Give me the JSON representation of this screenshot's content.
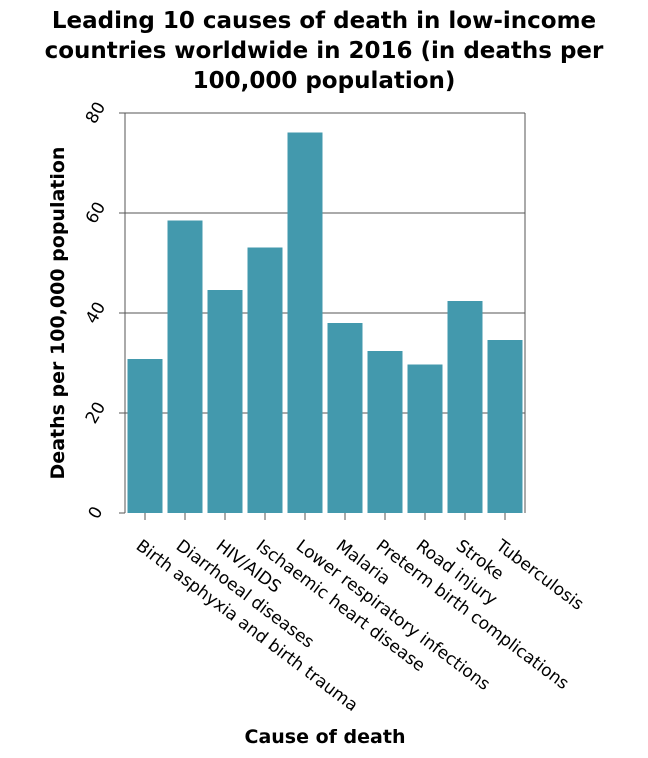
{
  "chart_data": {
    "type": "bar",
    "title_lines": [
      "Leading 10 causes of death in low-income",
      "countries worldwide in 2016 (in deaths per",
      "100,000 population)"
    ],
    "xlabel": "Cause of death",
    "ylabel": "Deaths per 100,000 population",
    "categories": [
      "Birth asphyxia and birth trauma",
      "Diarrhoeal diseases",
      "HIV/AIDS",
      "Ischaemic heart disease",
      "Lower respiratory infections",
      "Malaria",
      "Preterm birth complications",
      "Road injury",
      "Stroke",
      "Tuberculosis"
    ],
    "values": [
      30.8,
      58.5,
      44.6,
      53.1,
      76.1,
      38.0,
      32.4,
      29.7,
      42.4,
      34.6
    ],
    "ylim": [
      0,
      80
    ],
    "yticks": [
      0,
      20,
      40,
      60,
      80
    ],
    "grid": true,
    "colors": {
      "bar": "#4399ad",
      "grid": "#555555",
      "axis": "#555555"
    }
  }
}
